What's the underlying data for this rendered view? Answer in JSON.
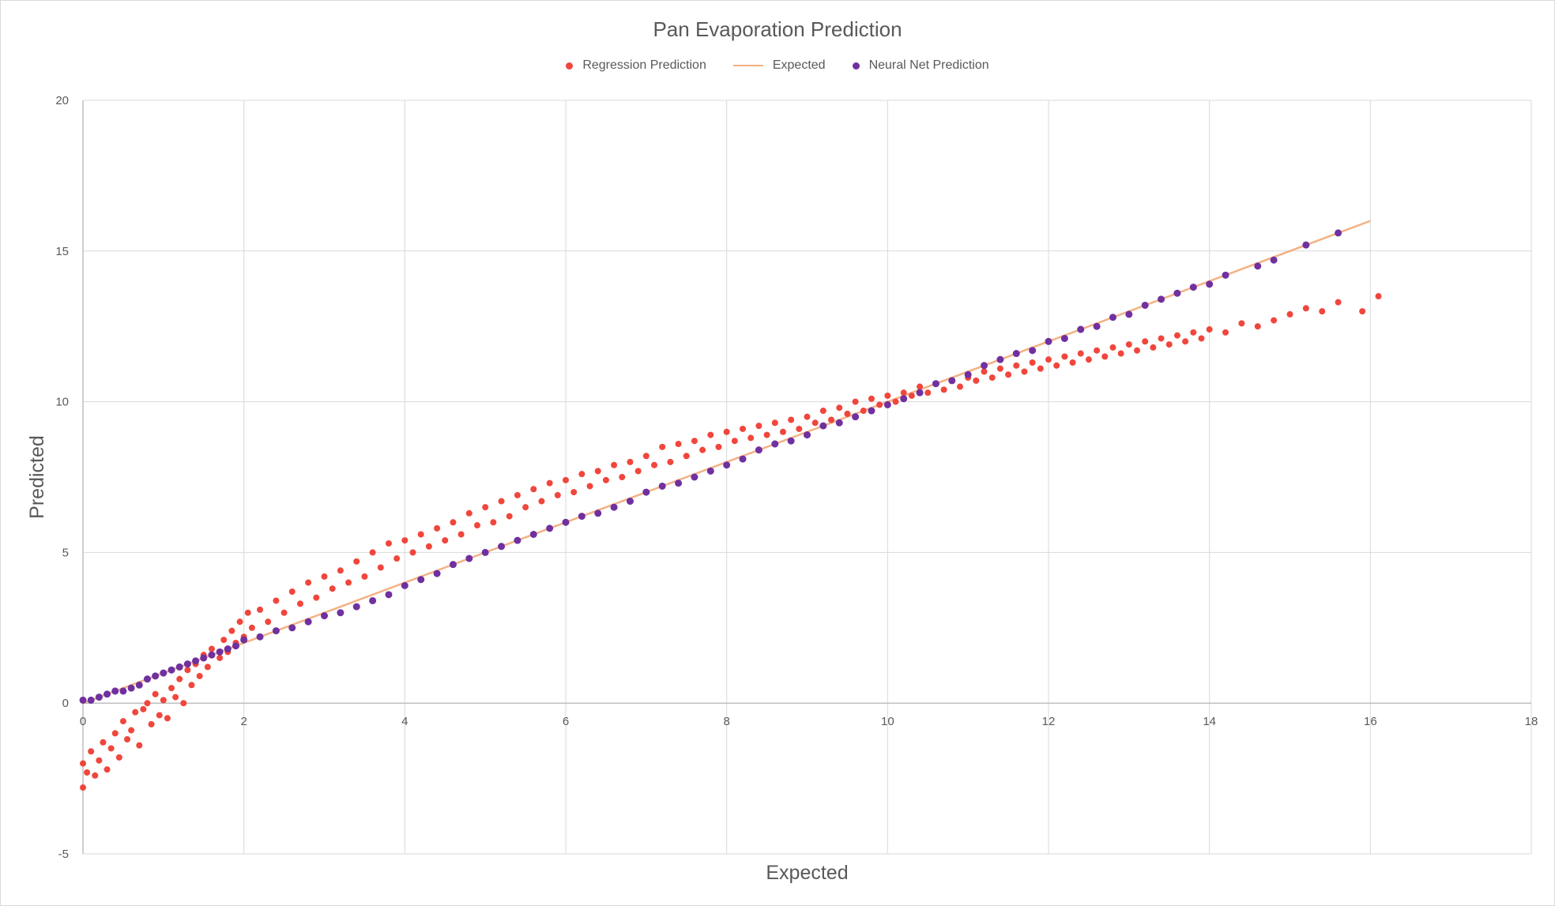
{
  "chart_data": {
    "type": "scatter",
    "title": "Pan Evaporation Prediction",
    "xlabel": "Expected",
    "ylabel": "Predicted",
    "xlim": [
      0,
      18
    ],
    "ylim": [
      -5,
      20
    ],
    "x_ticks": [
      0,
      2,
      4,
      6,
      8,
      10,
      12,
      14,
      16,
      18
    ],
    "y_ticks": [
      -5,
      0,
      5,
      10,
      15,
      20
    ],
    "x_tick_labels": [
      "0",
      "2",
      "4",
      "6",
      "8",
      "10",
      "12",
      "14",
      "16",
      "18"
    ],
    "y_tick_labels": [
      "-5",
      "0",
      "5",
      "10",
      "15",
      "20"
    ],
    "grid": true,
    "legend_position": "top-center",
    "series": [
      {
        "name": "Regression Prediction",
        "kind": "scatter",
        "color": "#f0463c",
        "points": [
          [
            0.0,
            -2.8
          ],
          [
            0.0,
            -2.0
          ],
          [
            0.05,
            -2.3
          ],
          [
            0.1,
            -1.6
          ],
          [
            0.15,
            -2.4
          ],
          [
            0.2,
            -1.9
          ],
          [
            0.25,
            -1.3
          ],
          [
            0.3,
            -2.2
          ],
          [
            0.35,
            -1.5
          ],
          [
            0.4,
            -1.0
          ],
          [
            0.45,
            -1.8
          ],
          [
            0.5,
            -0.6
          ],
          [
            0.55,
            -1.2
          ],
          [
            0.6,
            -0.9
          ],
          [
            0.65,
            -0.3
          ],
          [
            0.7,
            -1.4
          ],
          [
            0.75,
            -0.2
          ],
          [
            0.8,
            0.0
          ],
          [
            0.85,
            -0.7
          ],
          [
            0.9,
            0.3
          ],
          [
            0.95,
            -0.4
          ],
          [
            1.0,
            0.1
          ],
          [
            1.05,
            -0.5
          ],
          [
            1.1,
            0.5
          ],
          [
            1.15,
            0.2
          ],
          [
            1.2,
            0.8
          ],
          [
            1.25,
            0.0
          ],
          [
            1.3,
            1.1
          ],
          [
            1.35,
            0.6
          ],
          [
            1.4,
            1.3
          ],
          [
            1.45,
            0.9
          ],
          [
            1.5,
            1.6
          ],
          [
            1.55,
            1.2
          ],
          [
            1.6,
            1.8
          ],
          [
            1.7,
            1.5
          ],
          [
            1.75,
            2.1
          ],
          [
            1.8,
            1.7
          ],
          [
            1.85,
            2.4
          ],
          [
            1.9,
            2.0
          ],
          [
            1.95,
            2.7
          ],
          [
            2.0,
            2.2
          ],
          [
            2.05,
            3.0
          ],
          [
            2.1,
            2.5
          ],
          [
            2.2,
            3.1
          ],
          [
            2.3,
            2.7
          ],
          [
            2.4,
            3.4
          ],
          [
            2.5,
            3.0
          ],
          [
            2.6,
            3.7
          ],
          [
            2.7,
            3.3
          ],
          [
            2.8,
            4.0
          ],
          [
            2.9,
            3.5
          ],
          [
            3.0,
            4.2
          ],
          [
            3.1,
            3.8
          ],
          [
            3.2,
            4.4
          ],
          [
            3.3,
            4.0
          ],
          [
            3.4,
            4.7
          ],
          [
            3.5,
            4.2
          ],
          [
            3.6,
            5.0
          ],
          [
            3.7,
            4.5
          ],
          [
            3.8,
            5.3
          ],
          [
            3.9,
            4.8
          ],
          [
            4.0,
            5.4
          ],
          [
            4.1,
            5.0
          ],
          [
            4.2,
            5.6
          ],
          [
            4.3,
            5.2
          ],
          [
            4.4,
            5.8
          ],
          [
            4.5,
            5.4
          ],
          [
            4.6,
            6.0
          ],
          [
            4.7,
            5.6
          ],
          [
            4.8,
            6.3
          ],
          [
            4.9,
            5.9
          ],
          [
            5.0,
            6.5
          ],
          [
            5.1,
            6.0
          ],
          [
            5.2,
            6.7
          ],
          [
            5.3,
            6.2
          ],
          [
            5.4,
            6.9
          ],
          [
            5.5,
            6.5
          ],
          [
            5.6,
            7.1
          ],
          [
            5.7,
            6.7
          ],
          [
            5.8,
            7.3
          ],
          [
            5.9,
            6.9
          ],
          [
            6.0,
            7.4
          ],
          [
            6.1,
            7.0
          ],
          [
            6.2,
            7.6
          ],
          [
            6.3,
            7.2
          ],
          [
            6.4,
            7.7
          ],
          [
            6.5,
            7.4
          ],
          [
            6.6,
            7.9
          ],
          [
            6.7,
            7.5
          ],
          [
            6.8,
            8.0
          ],
          [
            6.9,
            7.7
          ],
          [
            7.0,
            8.2
          ],
          [
            7.1,
            7.9
          ],
          [
            7.2,
            8.5
          ],
          [
            7.3,
            8.0
          ],
          [
            7.4,
            8.6
          ],
          [
            7.5,
            8.2
          ],
          [
            7.6,
            8.7
          ],
          [
            7.7,
            8.4
          ],
          [
            7.8,
            8.9
          ],
          [
            7.9,
            8.5
          ],
          [
            8.0,
            9.0
          ],
          [
            8.1,
            8.7
          ],
          [
            8.2,
            9.1
          ],
          [
            8.3,
            8.8
          ],
          [
            8.4,
            9.2
          ],
          [
            8.5,
            8.9
          ],
          [
            8.6,
            9.3
          ],
          [
            8.7,
            9.0
          ],
          [
            8.8,
            9.4
          ],
          [
            8.9,
            9.1
          ],
          [
            9.0,
            9.5
          ],
          [
            9.1,
            9.3
          ],
          [
            9.2,
            9.7
          ],
          [
            9.3,
            9.4
          ],
          [
            9.4,
            9.8
          ],
          [
            9.5,
            9.6
          ],
          [
            9.6,
            10.0
          ],
          [
            9.7,
            9.7
          ],
          [
            9.8,
            10.1
          ],
          [
            9.9,
            9.9
          ],
          [
            10.0,
            10.2
          ],
          [
            10.1,
            10.0
          ],
          [
            10.2,
            10.3
          ],
          [
            10.3,
            10.2
          ],
          [
            10.4,
            10.5
          ],
          [
            10.5,
            10.3
          ],
          [
            10.6,
            10.6
          ],
          [
            10.7,
            10.4
          ],
          [
            10.8,
            10.7
          ],
          [
            10.9,
            10.5
          ],
          [
            11.0,
            10.8
          ],
          [
            11.1,
            10.7
          ],
          [
            11.2,
            11.0
          ],
          [
            11.3,
            10.8
          ],
          [
            11.4,
            11.1
          ],
          [
            11.5,
            10.9
          ],
          [
            11.6,
            11.2
          ],
          [
            11.7,
            11.0
          ],
          [
            11.8,
            11.3
          ],
          [
            11.9,
            11.1
          ],
          [
            12.0,
            11.4
          ],
          [
            12.1,
            11.2
          ],
          [
            12.2,
            11.5
          ],
          [
            12.3,
            11.3
          ],
          [
            12.4,
            11.6
          ],
          [
            12.5,
            11.4
          ],
          [
            12.6,
            11.7
          ],
          [
            12.7,
            11.5
          ],
          [
            12.8,
            11.8
          ],
          [
            12.9,
            11.6
          ],
          [
            13.0,
            11.9
          ],
          [
            13.1,
            11.7
          ],
          [
            13.2,
            12.0
          ],
          [
            13.3,
            11.8
          ],
          [
            13.4,
            12.1
          ],
          [
            13.5,
            11.9
          ],
          [
            13.6,
            12.2
          ],
          [
            13.7,
            12.0
          ],
          [
            13.8,
            12.3
          ],
          [
            13.9,
            12.1
          ],
          [
            14.0,
            12.4
          ],
          [
            14.2,
            12.3
          ],
          [
            14.4,
            12.6
          ],
          [
            14.6,
            12.5
          ],
          [
            14.8,
            12.7
          ],
          [
            15.0,
            12.9
          ],
          [
            15.2,
            13.1
          ],
          [
            15.4,
            13.0
          ],
          [
            15.6,
            13.3
          ],
          [
            15.9,
            13.0
          ],
          [
            16.1,
            13.5
          ]
        ]
      },
      {
        "name": "Expected",
        "kind": "line",
        "color": "#f4b183",
        "points": [
          [
            0,
            0
          ],
          [
            16,
            16
          ]
        ]
      },
      {
        "name": "Neural Net Prediction",
        "kind": "scatter",
        "color": "#7030a0",
        "points": [
          [
            0.0,
            0.1
          ],
          [
            0.1,
            0.1
          ],
          [
            0.2,
            0.2
          ],
          [
            0.3,
            0.3
          ],
          [
            0.4,
            0.4
          ],
          [
            0.5,
            0.4
          ],
          [
            0.6,
            0.5
          ],
          [
            0.7,
            0.6
          ],
          [
            0.8,
            0.8
          ],
          [
            0.9,
            0.9
          ],
          [
            1.0,
            1.0
          ],
          [
            1.1,
            1.1
          ],
          [
            1.2,
            1.2
          ],
          [
            1.3,
            1.3
          ],
          [
            1.4,
            1.4
          ],
          [
            1.5,
            1.5
          ],
          [
            1.6,
            1.6
          ],
          [
            1.7,
            1.7
          ],
          [
            1.8,
            1.8
          ],
          [
            1.9,
            1.9
          ],
          [
            2.0,
            2.1
          ],
          [
            2.2,
            2.2
          ],
          [
            2.4,
            2.4
          ],
          [
            2.6,
            2.5
          ],
          [
            2.8,
            2.7
          ],
          [
            3.0,
            2.9
          ],
          [
            3.2,
            3.0
          ],
          [
            3.4,
            3.2
          ],
          [
            3.6,
            3.4
          ],
          [
            3.8,
            3.6
          ],
          [
            4.0,
            3.9
          ],
          [
            4.2,
            4.1
          ],
          [
            4.4,
            4.3
          ],
          [
            4.6,
            4.6
          ],
          [
            4.8,
            4.8
          ],
          [
            5.0,
            5.0
          ],
          [
            5.2,
            5.2
          ],
          [
            5.4,
            5.4
          ],
          [
            5.6,
            5.6
          ],
          [
            5.8,
            5.8
          ],
          [
            6.0,
            6.0
          ],
          [
            6.2,
            6.2
          ],
          [
            6.4,
            6.3
          ],
          [
            6.6,
            6.5
          ],
          [
            6.8,
            6.7
          ],
          [
            7.0,
            7.0
          ],
          [
            7.2,
            7.2
          ],
          [
            7.4,
            7.3
          ],
          [
            7.6,
            7.5
          ],
          [
            7.8,
            7.7
          ],
          [
            8.0,
            7.9
          ],
          [
            8.2,
            8.1
          ],
          [
            8.4,
            8.4
          ],
          [
            8.6,
            8.6
          ],
          [
            8.8,
            8.7
          ],
          [
            9.0,
            8.9
          ],
          [
            9.2,
            9.2
          ],
          [
            9.4,
            9.3
          ],
          [
            9.6,
            9.5
          ],
          [
            9.8,
            9.7
          ],
          [
            10.0,
            9.9
          ],
          [
            10.2,
            10.1
          ],
          [
            10.4,
            10.3
          ],
          [
            10.6,
            10.6
          ],
          [
            10.8,
            10.7
          ],
          [
            11.0,
            10.9
          ],
          [
            11.2,
            11.2
          ],
          [
            11.4,
            11.4
          ],
          [
            11.6,
            11.6
          ],
          [
            11.8,
            11.7
          ],
          [
            12.0,
            12.0
          ],
          [
            12.2,
            12.1
          ],
          [
            12.4,
            12.4
          ],
          [
            12.6,
            12.5
          ],
          [
            12.8,
            12.8
          ],
          [
            13.0,
            12.9
          ],
          [
            13.2,
            13.2
          ],
          [
            13.4,
            13.4
          ],
          [
            13.6,
            13.6
          ],
          [
            13.8,
            13.8
          ],
          [
            14.0,
            13.9
          ],
          [
            14.2,
            14.2
          ],
          [
            14.6,
            14.5
          ],
          [
            14.8,
            14.7
          ],
          [
            15.2,
            15.2
          ],
          [
            15.6,
            15.6
          ]
        ]
      }
    ]
  }
}
